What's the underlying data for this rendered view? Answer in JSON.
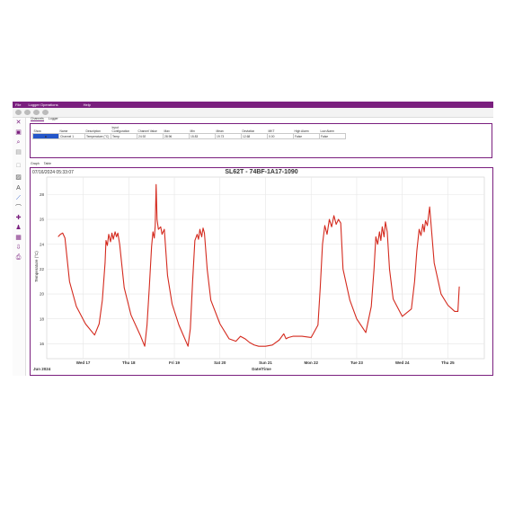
{
  "menu": [
    "File",
    "Logger Operations",
    "Help"
  ],
  "tabs_top": [
    "Channels",
    "Logger"
  ],
  "channel_table": {
    "headers": [
      "Show",
      "Name",
      "Description",
      "Input Configuration",
      "Channel Value",
      "Max",
      "Min",
      "Mean",
      "Deviation",
      "MKT",
      "High Alarm",
      "Low Alarm"
    ],
    "rows": [
      [
        "",
        "Channel 1",
        "Temperature (°C)",
        "Temp",
        "24.92",
        "28.96",
        "15.83",
        "19.73",
        "12.68",
        "0.00",
        "False",
        "False"
      ]
    ]
  },
  "tabs_mid": [
    "Graph",
    "Table"
  ],
  "graph": {
    "timestamp": "07/16/2024 05:33:07",
    "title": "SL62T - 74BF-1A17-1090",
    "ylabel": "Temperature (°C)",
    "xlabel": "Date/Time",
    "month_label": "Jun 2024"
  },
  "colors": {
    "accent": "#7a1f7e",
    "line": "#d42a1e",
    "grid": "#e6e6e6"
  },
  "chart_data": {
    "type": "line",
    "title": "SL62T - 74BF-1A17-1090",
    "xlabel": "Date/Time",
    "ylabel": "Temperature (°C)",
    "ylim": [
      14.8,
      29.4
    ],
    "yticks": [
      16,
      18,
      20,
      22,
      24,
      26,
      28
    ],
    "xlim": [
      16.2,
      25.8
    ],
    "xticks": [
      17,
      18,
      19,
      20,
      21,
      22,
      23,
      24,
      25
    ],
    "xticklabels": [
      "Wed 17",
      "Thu 18",
      "Fri 19",
      "Sat 20",
      "Sun 21",
      "Mon 22",
      "Tue 23",
      "Wed 24",
      "Thu 25"
    ],
    "grid": true,
    "series": [
      {
        "x": [
          16.45,
          16.5,
          16.55,
          16.6,
          16.7,
          16.85,
          17.05,
          17.25,
          17.35,
          17.42,
          17.48,
          17.5,
          17.53,
          17.56,
          17.6,
          17.63,
          17.66,
          17.7,
          17.73,
          17.76,
          17.8,
          17.9,
          18.05,
          18.25,
          18.35,
          18.4,
          18.45,
          18.5,
          18.53,
          18.56,
          18.58,
          18.6,
          18.62,
          18.65,
          18.7,
          18.73,
          18.78,
          18.85,
          18.95,
          19.1,
          19.3,
          19.35,
          19.4,
          19.45,
          19.5,
          19.53,
          19.56,
          19.6,
          19.63,
          19.66,
          19.72,
          19.8,
          20.0,
          20.2,
          20.35,
          20.45,
          20.55,
          20.65,
          20.75,
          20.85,
          21.0,
          21.15,
          21.3,
          21.4,
          21.45,
          21.5,
          21.6,
          21.8,
          22.0,
          22.15,
          22.2,
          22.25,
          22.3,
          22.35,
          22.4,
          22.45,
          22.5,
          22.55,
          22.6,
          22.65,
          22.7,
          22.85,
          23.0,
          23.2,
          23.32,
          23.38,
          23.42,
          23.46,
          23.5,
          23.53,
          23.56,
          23.6,
          23.63,
          23.67,
          23.72,
          23.8,
          24.0,
          24.2,
          24.27,
          24.32,
          24.37,
          24.41,
          24.45,
          24.48,
          24.51,
          24.55,
          24.6,
          24.7,
          24.85,
          25.0,
          25.15,
          25.22,
          25.25
        ],
        "y": [
          24.6,
          24.8,
          24.9,
          24.5,
          21.0,
          19.0,
          17.6,
          16.7,
          17.6,
          19.5,
          22.5,
          24.3,
          23.9,
          24.8,
          24.2,
          24.9,
          24.4,
          25.0,
          24.6,
          24.9,
          24.0,
          20.5,
          18.3,
          16.7,
          15.8,
          17.5,
          20.5,
          23.8,
          25.0,
          24.5,
          25.5,
          28.8,
          26.0,
          25.2,
          25.4,
          24.8,
          25.2,
          21.5,
          19.2,
          17.5,
          15.8,
          17.2,
          21.0,
          24.3,
          24.8,
          24.4,
          25.2,
          24.6,
          25.3,
          24.9,
          22.0,
          19.5,
          17.6,
          16.4,
          16.2,
          16.6,
          16.4,
          16.1,
          15.9,
          15.8,
          15.8,
          15.9,
          16.3,
          16.8,
          16.4,
          16.5,
          16.6,
          16.6,
          16.5,
          17.5,
          20.5,
          24.0,
          25.5,
          24.8,
          26.0,
          25.4,
          26.3,
          25.6,
          26.0,
          25.7,
          22.0,
          19.5,
          18.0,
          16.9,
          19.0,
          22.0,
          24.6,
          24.0,
          25.0,
          24.3,
          25.4,
          24.6,
          25.8,
          25.0,
          22.0,
          19.6,
          18.2,
          18.8,
          21.0,
          23.5,
          25.2,
          24.7,
          25.6,
          25.0,
          25.9,
          25.5,
          27.0,
          22.5,
          20.0,
          19.1,
          18.6,
          18.6,
          20.6
        ]
      }
    ]
  }
}
